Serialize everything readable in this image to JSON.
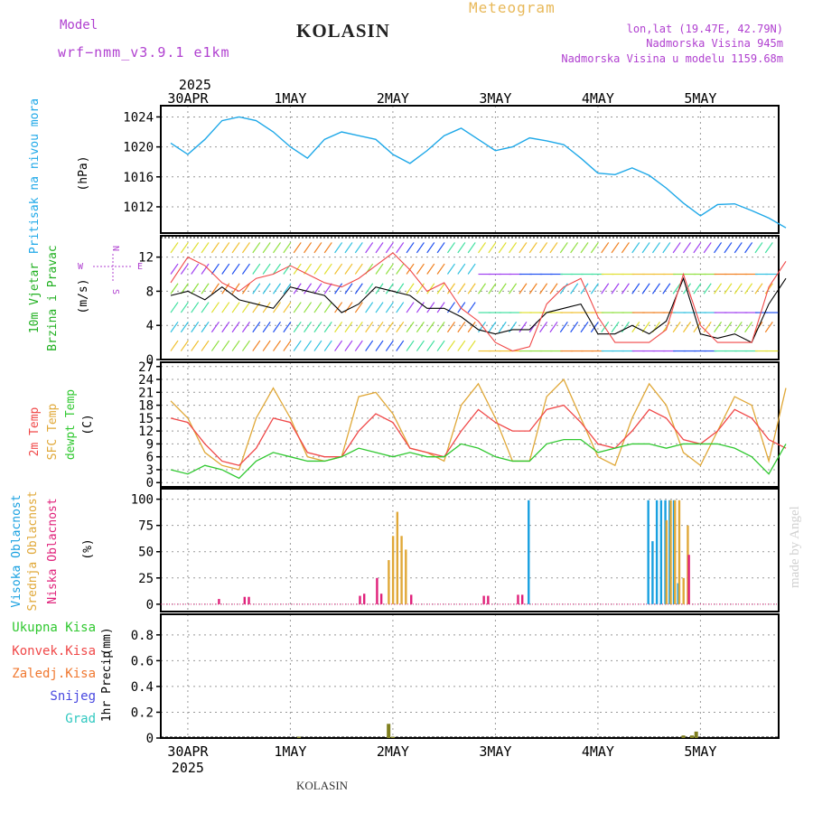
{
  "header": {
    "model_label": "Model",
    "model_name": "wrf−nmm_v3.9.1  e1km",
    "station": "KOLASIN",
    "title": "Meteogram",
    "coords": "lon,lat (19.47E, 42.79N)",
    "elevation": "Nadmorska Visina 945m",
    "model_elevation": "Nadmorska Visina u modelu 1159.68m",
    "footer_station": "KOLASIN",
    "watermark": "made by Angel"
  },
  "colors": {
    "pressure": "#1ea8e8",
    "temp": "#f04848",
    "sfc_temp": "#e0a838",
    "dewpt": "#30c830",
    "high_cloud": "#18a0e0",
    "mid_cloud": "#e0a838",
    "low_cloud": "#e0207a",
    "total_precip": "#30c830",
    "conv_precip": "#f04848",
    "frz_precip": "#f07830",
    "snow": "#4848e0",
    "grad": "#30c8c0",
    "precip_bar": "#808020",
    "header_purple": "#b040d0",
    "title_gold": "#e8b858"
  },
  "chart_data": [
    {
      "type": "line",
      "panel": "pressure",
      "ylabel": "Pritisak na nivou mora",
      "unit": "(hPa)",
      "xlabel_top_year": "2025",
      "x_ticks": [
        "30APR",
        "1MAY",
        "2MAY",
        "3MAY",
        "4MAY",
        "5MAY"
      ],
      "y_ticks": [
        1012,
        1016,
        1020,
        1024
      ],
      "ylim": [
        1008.5,
        1025.5
      ],
      "xlim_hours": [
        0,
        145
      ],
      "grid": true,
      "series": [
        {
          "x": [
            0,
            4,
            8,
            12,
            16,
            20,
            24,
            28,
            32,
            36,
            40,
            44,
            48,
            52,
            56,
            60,
            64,
            68,
            72,
            76,
            80,
            84,
            88,
            92,
            96,
            100,
            104,
            108,
            112,
            116,
            120,
            124,
            128,
            132,
            136,
            140,
            144
          ],
          "y": [
            1020.5,
            1019.0,
            1021.0,
            1023.5,
            1024.0,
            1023.5,
            1022.0,
            1020.0,
            1018.5,
            1021.0,
            1022.0,
            1021.5,
            1021.0,
            1019.0,
            1017.8,
            1019.5,
            1021.5,
            1022.5,
            1021.0,
            1019.5,
            1020.0,
            1021.2,
            1020.8,
            1020.3,
            1018.5,
            1016.5,
            1016.3,
            1017.2,
            1016.2,
            1014.5,
            1012.5,
            1010.8,
            1012.3,
            1012.4,
            1011.5,
            1010.5,
            1009.2
          ]
        }
      ]
    },
    {
      "type": "line",
      "panel": "wind",
      "ylabel": "10m Vjetar",
      "ylabel2": "Brzina i Pravac",
      "unit": "(m/s)",
      "compass": {
        "n": "N",
        "s": "S",
        "e": "E",
        "w": "W"
      },
      "y_ticks": [
        0,
        4,
        8,
        12
      ],
      "ylim": [
        0,
        14.5
      ],
      "grid": true,
      "series": [
        {
          "name": "speed",
          "x": [
            0,
            4,
            8,
            12,
            16,
            20,
            24,
            28,
            32,
            36,
            40,
            44,
            48,
            52,
            56,
            60,
            64,
            68,
            72,
            76,
            80,
            84,
            88,
            92,
            96,
            100,
            104,
            108,
            112,
            116,
            120,
            124,
            128,
            132,
            136,
            140,
            144
          ],
          "y": [
            7.5,
            8.0,
            7.0,
            8.5,
            7.0,
            6.5,
            6.0,
            8.5,
            8.0,
            7.5,
            5.5,
            6.5,
            8.5,
            8.0,
            7.5,
            6.0,
            6.0,
            5.0,
            3.5,
            3.0,
            3.5,
            3.5,
            5.5,
            6.0,
            6.5,
            3.0,
            3.0,
            4.0,
            3.0,
            4.5,
            9.5,
            3.0,
            2.5,
            3.0,
            2.0,
            6.5,
            9.5
          ]
        },
        {
          "name": "gust",
          "x": [
            0,
            4,
            8,
            12,
            16,
            20,
            24,
            28,
            32,
            36,
            40,
            44,
            48,
            52,
            56,
            60,
            64,
            68,
            72,
            76,
            80,
            84,
            88,
            92,
            96,
            100,
            104,
            108,
            112,
            116,
            120,
            124,
            128,
            132,
            136,
            140,
            144
          ],
          "y": [
            9.0,
            12.0,
            11.0,
            9.0,
            8.0,
            9.5,
            10.0,
            11.0,
            10.0,
            9.0,
            8.5,
            9.5,
            11.0,
            12.5,
            10.5,
            8.0,
            9.0,
            6.0,
            4.5,
            2.0,
            1.0,
            1.5,
            6.5,
            8.5,
            9.5,
            5.0,
            2.0,
            2.0,
            2.0,
            3.5,
            10.0,
            4.0,
            2.0,
            2.0,
            2.0,
            8.5,
            11.5
          ]
        }
      ]
    },
    {
      "type": "line",
      "panel": "temperature",
      "ylabel": "2m Temp",
      "ylabel2": "SFC Temp",
      "ylabel3": "dewpt Temp",
      "unit": "(C)",
      "y_ticks": [
        0,
        3,
        6,
        9,
        12,
        15,
        18,
        21,
        24,
        27
      ],
      "ylim": [
        -1,
        28
      ],
      "grid": true,
      "series": [
        {
          "name": "2m Temp",
          "x": [
            0,
            4,
            8,
            12,
            16,
            20,
            24,
            28,
            32,
            36,
            40,
            44,
            48,
            52,
            56,
            60,
            64,
            68,
            72,
            76,
            80,
            84,
            88,
            92,
            96,
            100,
            104,
            108,
            112,
            116,
            120,
            124,
            128,
            132,
            136,
            140,
            144
          ],
          "y": [
            15,
            14,
            9,
            5,
            4,
            8,
            15,
            14,
            7,
            6,
            6,
            12,
            16,
            14,
            8,
            7,
            6,
            12,
            17,
            14,
            12,
            12,
            17,
            18,
            14,
            9,
            8,
            12,
            17,
            15,
            10,
            9,
            12,
            17,
            15,
            10,
            8
          ]
        },
        {
          "name": "SFC Temp",
          "x": [
            0,
            4,
            8,
            12,
            16,
            20,
            24,
            28,
            32,
            36,
            40,
            44,
            48,
            52,
            56,
            60,
            64,
            68,
            72,
            76,
            80,
            84,
            88,
            92,
            96,
            100,
            104,
            108,
            112,
            116,
            120,
            124,
            128,
            132,
            136,
            140,
            144
          ],
          "y": [
            19,
            15,
            7,
            4,
            3,
            15,
            22,
            15,
            6,
            5,
            6,
            20,
            21,
            16,
            8,
            7,
            5,
            18,
            23,
            15,
            5,
            5,
            20,
            24,
            15,
            6,
            4,
            15,
            23,
            18,
            7,
            4,
            12,
            20,
            18,
            5,
            22
          ]
        },
        {
          "name": "dewpt Temp",
          "x": [
            0,
            4,
            8,
            12,
            16,
            20,
            24,
            28,
            32,
            36,
            40,
            44,
            48,
            52,
            56,
            60,
            64,
            68,
            72,
            76,
            80,
            84,
            88,
            92,
            96,
            100,
            104,
            108,
            112,
            116,
            120,
            124,
            128,
            132,
            136,
            140,
            144
          ],
          "y": [
            3,
            2,
            4,
            3,
            1,
            5,
            7,
            6,
            5,
            5,
            6,
            8,
            7,
            6,
            7,
            6,
            6,
            9,
            8,
            6,
            5,
            5,
            9,
            10,
            10,
            7,
            8,
            9,
            9,
            8,
            9,
            9,
            9,
            8,
            6,
            2,
            9
          ]
        }
      ]
    },
    {
      "type": "bar",
      "panel": "clouds",
      "ylabel": "Visoka Oblacnost",
      "ylabel2": "Srednja Oblacnost",
      "ylabel3": "Niska Oblacnost",
      "unit": "(%)",
      "y_ticks": [
        0,
        25,
        50,
        75,
        100
      ],
      "ylim": [
        -7,
        110
      ],
      "grid": true,
      "series": [
        {
          "name": "Visoka Oblacnost",
          "x": [
            84,
            112,
            113,
            114,
            115,
            116,
            117,
            118,
            119
          ],
          "y": [
            99,
            99,
            60,
            99,
            99,
            99,
            99,
            99,
            20
          ]
        },
        {
          "name": "Srednja Oblacnost",
          "x": [
            51,
            52,
            53,
            54,
            55,
            116,
            117,
            118,
            119,
            120,
            121
          ],
          "y": [
            42,
            65,
            88,
            65,
            52,
            80,
            99,
            99,
            99,
            25,
            75
          ]
        },
        {
          "name": "Niska Oblacnost",
          "x": [
            11,
            17,
            18,
            44,
            45,
            48,
            49,
            56,
            73,
            74,
            81,
            82,
            121
          ],
          "y": [
            5,
            7,
            7,
            8,
            10,
            25,
            10,
            9,
            8,
            8,
            9,
            9,
            47
          ]
        }
      ]
    },
    {
      "type": "bar",
      "panel": "precip",
      "ylabel": "1hr Precip",
      "unit": "(mm)",
      "legend": [
        "Ukupna Kisa",
        "Konvek.Kisa",
        "Zaledj.Kisa",
        "Snijeg",
        "Grad"
      ],
      "x_ticks_bottom": [
        "30APR",
        "1MAY",
        "2MAY",
        "3MAY",
        "4MAY",
        "5MAY"
      ],
      "xlabel_bottom_year": "2025",
      "y_ticks": [
        0,
        0.2,
        0.4,
        0.6,
        0.8
      ],
      "ylim": [
        0,
        0.96
      ],
      "grid": true,
      "series": [
        {
          "name": "1hr Precip",
          "x": [
            30,
            51,
            52,
            120,
            122,
            123
          ],
          "y": [
            0.01,
            0.11,
            0.01,
            0.02,
            0.02,
            0.05
          ]
        }
      ]
    }
  ]
}
